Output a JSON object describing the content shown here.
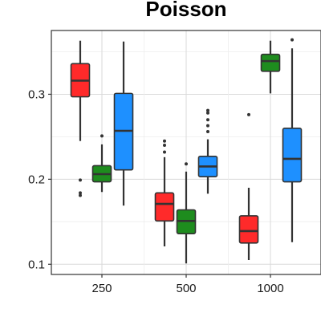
{
  "chart_data": {
    "type": "boxplot",
    "title": "Poisson",
    "xlabel": "",
    "ylabel": "",
    "categories": [
      "250",
      "500",
      "1000"
    ],
    "ylim": [
      0.088,
      0.375
    ],
    "yticks": [
      0.1,
      0.2,
      0.3
    ],
    "ytick_labels": [
      "0.1",
      "0.2",
      "0.3"
    ],
    "grid": true,
    "legend": "none",
    "series": [
      {
        "color": "#ff2a2a",
        "boxes": [
          {
            "category": "250",
            "whisker_low": 0.245,
            "q1": 0.297,
            "median": 0.316,
            "q3": 0.336,
            "whisker_high": 0.363,
            "outliers": [
              0.199,
              0.184,
              0.181
            ]
          },
          {
            "category": "500",
            "whisker_low": 0.121,
            "q1": 0.151,
            "median": 0.171,
            "q3": 0.184,
            "whisker_high": 0.226,
            "outliers": [
              0.232,
              0.24,
              0.245
            ]
          },
          {
            "category": "1000",
            "whisker_low": 0.105,
            "q1": 0.125,
            "median": 0.139,
            "q3": 0.157,
            "whisker_high": 0.19,
            "outliers": [
              0.276
            ]
          }
        ]
      },
      {
        "color": "#1e8c1e",
        "boxes": [
          {
            "category": "250",
            "whisker_low": 0.185,
            "q1": 0.197,
            "median": 0.206,
            "q3": 0.216,
            "whisker_high": 0.241,
            "outliers": [
              0.251
            ]
          },
          {
            "category": "500",
            "whisker_low": 0.101,
            "q1": 0.136,
            "median": 0.151,
            "q3": 0.164,
            "whisker_high": 0.209,
            "outliers": [
              0.218
            ]
          },
          {
            "category": "1000",
            "whisker_low": 0.301,
            "q1": 0.327,
            "median": 0.339,
            "q3": 0.347,
            "whisker_high": 0.363,
            "outliers": []
          }
        ]
      },
      {
        "color": "#1e90ff",
        "boxes": [
          {
            "category": "250",
            "whisker_low": 0.169,
            "q1": 0.211,
            "median": 0.257,
            "q3": 0.301,
            "whisker_high": 0.362,
            "outliers": []
          },
          {
            "category": "500",
            "whisker_low": 0.183,
            "q1": 0.203,
            "median": 0.215,
            "q3": 0.227,
            "whisker_high": 0.247,
            "outliers": [
              0.256,
              0.263,
              0.27,
              0.278,
              0.281
            ]
          },
          {
            "category": "1000",
            "whisker_low": 0.126,
            "q1": 0.197,
            "median": 0.224,
            "q3": 0.26,
            "whisker_high": 0.354,
            "outliers": [
              0.364
            ]
          }
        ]
      }
    ]
  }
}
